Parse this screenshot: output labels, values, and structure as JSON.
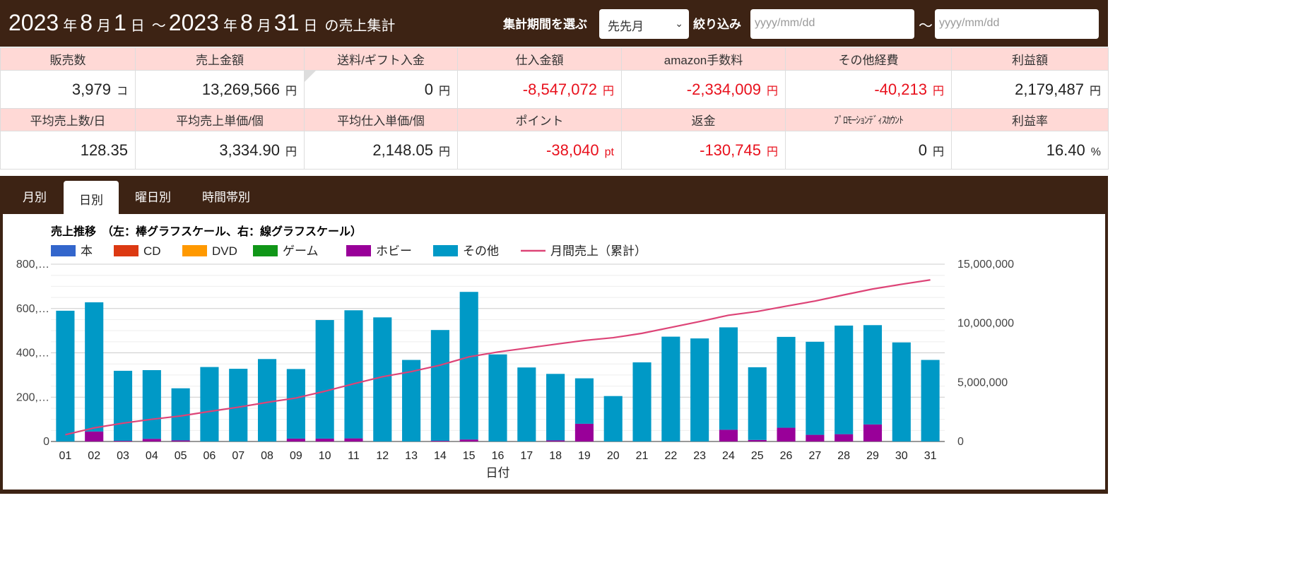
{
  "header": {
    "year1": "2023",
    "month1": "8",
    "day1": "1",
    "year2": "2023",
    "month2": "8",
    "day2": "31",
    "y_unit": "年",
    "m_unit": "月",
    "d_unit": "日",
    "tilde": "～",
    "suffix": "の売上集計",
    "period_label": "集計期間を選ぶ",
    "period_value": "先先月",
    "filter_label": "絞り込み",
    "date_from_placeholder": "yyyy/mm/dd",
    "date_to_placeholder": "yyyy/mm/dd",
    "range_tilde": "～"
  },
  "stats": {
    "row1_labels": [
      "販売数",
      "売上金額",
      "送料/ギフト入金",
      "仕入金額",
      "amazon手数料",
      "その他経費",
      "利益額"
    ],
    "row1_values": [
      {
        "v": "3,979",
        "u": "コ"
      },
      {
        "v": "13,269,566",
        "u": "円"
      },
      {
        "v": "0",
        "u": "円"
      },
      {
        "v": "-8,547,072",
        "u": "円"
      },
      {
        "v": "-2,334,009",
        "u": "円"
      },
      {
        "v": "-40,213",
        "u": "円"
      },
      {
        "v": "2,179,487",
        "u": "円"
      }
    ],
    "row2_labels": [
      "平均売上数/日",
      "平均売上単価/個",
      "平均仕入単価/個",
      "ポイント",
      "返金",
      "ﾌﾟﾛﾓｰｼｮﾝﾃﾞｨｽｶｳﾝﾄ",
      "利益率"
    ],
    "row2_values": [
      {
        "v": "128.35",
        "u": ""
      },
      {
        "v": "3,334.90",
        "u": "円"
      },
      {
        "v": "2,148.05",
        "u": "円"
      },
      {
        "v": "-38,040",
        "u": "pt"
      },
      {
        "v": "-130,745",
        "u": "円"
      },
      {
        "v": "0",
        "u": "円"
      },
      {
        "v": "16.40",
        "u": "%"
      }
    ]
  },
  "tabs": [
    "月別",
    "日別",
    "曜日別",
    "時間帯別"
  ],
  "colors": {
    "header": "#3d2314",
    "book": "#3366cc",
    "cd": "#dc3912",
    "dvd": "#ff9900",
    "game": "#109618",
    "hobby": "#990099",
    "other": "#0099c6",
    "line": "#dd4477",
    "negative": "#e8101c",
    "stat_header": "#ffd9d6"
  },
  "chart_data": {
    "type": "bar",
    "title": "売上推移　（左：棒グラフスケール、右：線グラフスケール）",
    "xlabel": "日付",
    "categories": [
      "01",
      "02",
      "03",
      "04",
      "05",
      "06",
      "07",
      "08",
      "09",
      "10",
      "11",
      "12",
      "13",
      "14",
      "15",
      "16",
      "17",
      "18",
      "19",
      "20",
      "21",
      "22",
      "23",
      "24",
      "25",
      "26",
      "27",
      "28",
      "29",
      "30",
      "31"
    ],
    "y_ticks": [
      "0",
      "200,…",
      "400,…",
      "600,…",
      "800,…"
    ],
    "y2_ticks": [
      "0",
      "5,000,000",
      "10,000,000",
      "15,000,000"
    ],
    "ylim": [
      0,
      800000
    ],
    "y2lim": [
      0,
      15000000
    ],
    "series": [
      {
        "name": "本",
        "values": [
          0,
          0,
          0,
          0,
          0,
          0,
          0,
          0,
          0,
          0,
          0,
          0,
          0,
          0,
          0,
          0,
          0,
          0,
          0,
          0,
          0,
          0,
          0,
          0,
          0,
          0,
          0,
          0,
          0,
          0,
          0
        ]
      },
      {
        "name": "CD",
        "values": [
          0,
          0,
          0,
          0,
          0,
          0,
          0,
          0,
          0,
          0,
          0,
          0,
          0,
          0,
          0,
          0,
          0,
          0,
          0,
          0,
          0,
          0,
          0,
          0,
          0,
          0,
          0,
          0,
          0,
          0,
          0
        ]
      },
      {
        "name": "DVD",
        "values": [
          0,
          0,
          0,
          0,
          0,
          0,
          0,
          0,
          0,
          0,
          0,
          0,
          0,
          0,
          0,
          0,
          0,
          0,
          0,
          0,
          0,
          0,
          0,
          0,
          0,
          0,
          0,
          0,
          0,
          0,
          0
        ]
      },
      {
        "name": "ゲーム",
        "values": [
          0,
          0,
          0,
          0,
          0,
          0,
          0,
          0,
          0,
          0,
          0,
          0,
          0,
          0,
          0,
          0,
          0,
          0,
          0,
          0,
          0,
          0,
          0,
          0,
          0,
          0,
          0,
          0,
          0,
          0,
          0
        ]
      },
      {
        "name": "ホビー",
        "values": [
          0,
          45000,
          3000,
          12000,
          5000,
          0,
          0,
          0,
          13000,
          13000,
          14000,
          0,
          0,
          3000,
          9000,
          0,
          0,
          5000,
          80000,
          0,
          0,
          0,
          0,
          53000,
          7000,
          62000,
          30000,
          33000,
          77000,
          0,
          0
        ]
      },
      {
        "name": "その他",
        "values": [
          590000,
          583000,
          316000,
          310000,
          235000,
          336000,
          328000,
          372000,
          314000,
          535000,
          578000,
          560000,
          368000,
          500000,
          666000,
          393000,
          334000,
          300000,
          205000,
          205000,
          357000,
          473000,
          465000,
          462000,
          328000,
          410000,
          420000,
          490000,
          448000,
          447000,
          368000
        ]
      }
    ],
    "line": {
      "name": "月間売上（累計）",
      "values": [
        570000,
        1150000,
        1550000,
        1880000,
        2160000,
        2540000,
        2900000,
        3310000,
        3680000,
        4250000,
        4880000,
        5480000,
        5910000,
        6460000,
        7160000,
        7570000,
        7900000,
        8230000,
        8550000,
        8780000,
        9150000,
        9650000,
        10150000,
        10680000,
        11000000,
        11450000,
        11880000,
        12400000,
        12900000,
        13300000,
        13670000
      ]
    },
    "legend_position": "top-left"
  }
}
